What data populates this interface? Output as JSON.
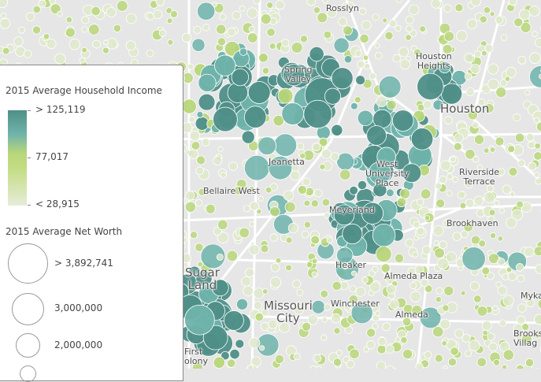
{
  "legend": {
    "income_title": "2015 Average Household Income",
    "income_high": "> 125,119",
    "income_mid": "77,017",
    "income_low": "< 28,915",
    "networth_title": "2015 Average Net Worth",
    "networth_sizes": [
      {
        "label": "> 3,892,741"
      },
      {
        "label": "3,000,000"
      },
      {
        "label": "2,000,000"
      }
    ]
  },
  "places": {
    "rosslyn": "Rosslyn",
    "spring_valley": [
      "Spring",
      "Valley"
    ],
    "houston_heights": [
      "Houston",
      "Heights"
    ],
    "houston": "Houston",
    "jeanetta": "Jeanetta",
    "west_university_place": [
      "West",
      "University",
      "Place"
    ],
    "riverside_terrace": [
      "Riverside",
      "Terrace"
    ],
    "bellaire_west": "Bellaire West",
    "meyerland": "Meyerland",
    "brookhaven": "Brookhaven",
    "heaker": "Heaker",
    "almeda_plaza": "Almeda Plaza",
    "sugar_land": [
      "Sugar",
      "Land"
    ],
    "missouri_city": [
      "Missouri",
      "City"
    ],
    "winchester": "Winchester",
    "almeda": "Almeda",
    "myka": "Myka",
    "brookshire_village": [
      "Brooks",
      "Villag"
    ],
    "first_colony": [
      "First",
      "olony"
    ]
  },
  "colors": {
    "high": "#4f8f88",
    "midhigh": "#6fb3ab",
    "mid": "#b8d67a",
    "low": "#dfe9cc",
    "road": "#ffffff",
    "land": "#e6e6e6"
  }
}
